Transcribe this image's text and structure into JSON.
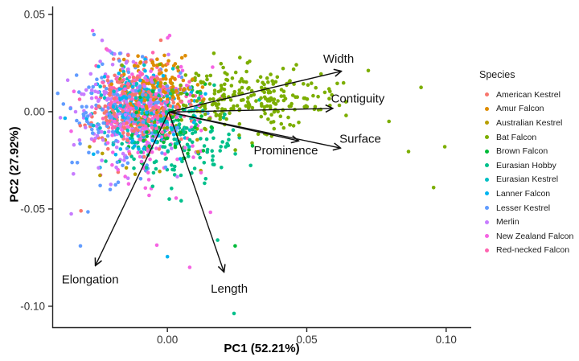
{
  "figure": {
    "type": "PCA biplot scatter",
    "background": "#ffffff"
  },
  "legend": {
    "title": "Species",
    "items": [
      {
        "label": "American Kestrel",
        "color": "#F8766D"
      },
      {
        "label": "Amur Falcon",
        "color": "#DE8C00"
      },
      {
        "label": "Australian Kestrel",
        "color": "#B79F00"
      },
      {
        "label": "Bat Falcon",
        "color": "#7CAE00"
      },
      {
        "label": "Brown Falcon",
        "color": "#00BA38"
      },
      {
        "label": "Eurasian Hobby",
        "color": "#00C08B"
      },
      {
        "label": "Eurasian Kestrel",
        "color": "#00BFC4"
      },
      {
        "label": "Lanner Falcon",
        "color": "#00B4F0"
      },
      {
        "label": "Lesser Kestrel",
        "color": "#619CFF"
      },
      {
        "label": "Merlin",
        "color": "#C77CFF"
      },
      {
        "label": "New Zealand Falcon",
        "color": "#F564E3"
      },
      {
        "label": "Red-necked Falcon",
        "color": "#FF64B0"
      }
    ]
  },
  "chart_data": {
    "type": "scatter",
    "title": "",
    "xlabel": "PC1 (52.21%)",
    "ylabel": "PC2 (27.92%)",
    "xlim": [
      -0.0413,
      0.109
    ],
    "ylim": [
      -0.1112,
      0.0541
    ],
    "x_ticks": [
      0.0,
      0.05,
      0.1
    ],
    "x_tick_labels": [
      "0.00",
      "0.05",
      "0.10"
    ],
    "y_ticks": [
      0.05,
      0.0,
      -0.05,
      -0.1
    ],
    "y_tick_labels": [
      "0.05",
      "0.00",
      "-0.05",
      "-0.10"
    ],
    "grid": false,
    "legend_position": "right",
    "axis_color": "#222222",
    "arrow_color": "#111111",
    "point_radius": 2.3,
    "seed": 42,
    "species_clusters": [
      {
        "name": "American Kestrel",
        "color": "#F8766D",
        "n": 200,
        "cx": -0.012,
        "cy": 0.005,
        "sx": 0.0085,
        "sy": 0.011
      },
      {
        "name": "Amur Falcon",
        "color": "#DE8C00",
        "n": 130,
        "cx": -0.004,
        "cy": 0.012,
        "sx": 0.0075,
        "sy": 0.0075
      },
      {
        "name": "Australian Kestrel",
        "color": "#B79F00",
        "n": 30,
        "cx": -0.01,
        "cy": -0.01,
        "sx": 0.013,
        "sy": 0.016
      },
      {
        "name": "Bat Falcon",
        "color": "#7CAE00",
        "n": 270,
        "cx": 0.026,
        "cy": 0.007,
        "sx": 0.017,
        "sy": 0.0085
      },
      {
        "name": "Brown Falcon",
        "color": "#00BA38",
        "n": 70,
        "cx": 0.0,
        "cy": -0.008,
        "sx": 0.009,
        "sy": 0.011
      },
      {
        "name": "Eurasian Hobby",
        "color": "#00C08B",
        "n": 150,
        "cx": 0.004,
        "cy": -0.014,
        "sx": 0.011,
        "sy": 0.013
      },
      {
        "name": "Eurasian Kestrel",
        "color": "#00BFC4",
        "n": 120,
        "cx": -0.008,
        "cy": 0.001,
        "sx": 0.008,
        "sy": 0.01
      },
      {
        "name": "Lanner Falcon",
        "color": "#00B4F0",
        "n": 120,
        "cx": -0.01,
        "cy": 0.0,
        "sx": 0.009,
        "sy": 0.012
      },
      {
        "name": "Lesser Kestrel",
        "color": "#619CFF",
        "n": 170,
        "cx": -0.015,
        "cy": -0.003,
        "sx": 0.01,
        "sy": 0.015
      },
      {
        "name": "Merlin",
        "color": "#C77CFF",
        "n": 170,
        "cx": -0.016,
        "cy": 0.001,
        "sx": 0.009,
        "sy": 0.015
      },
      {
        "name": "New Zealand Falcon",
        "color": "#F564E3",
        "n": 140,
        "cx": -0.006,
        "cy": -0.004,
        "sx": 0.01,
        "sy": 0.017
      },
      {
        "name": "Red-necked Falcon",
        "color": "#FF64B0",
        "n": 130,
        "cx": -0.011,
        "cy": 0.004,
        "sx": 0.008,
        "sy": 0.0095
      }
    ],
    "outlier_points": [
      {
        "species": "Bat Falcon",
        "x": 0.091,
        "y": 0.0125
      },
      {
        "species": "Bat Falcon",
        "x": 0.0795,
        "y": -0.005
      },
      {
        "species": "Bat Falcon",
        "x": 0.0865,
        "y": -0.0205
      },
      {
        "species": "Bat Falcon",
        "x": 0.0995,
        "y": -0.018
      },
      {
        "species": "Bat Falcon",
        "x": 0.0955,
        "y": -0.039
      },
      {
        "species": "Eurasian Hobby",
        "x": 0.0239,
        "y": -0.1037
      },
      {
        "species": "Eurasian Hobby",
        "x": 0.018,
        "y": -0.066
      },
      {
        "species": "Brown Falcon",
        "x": 0.0243,
        "y": -0.069
      },
      {
        "species": "Lanner Falcon",
        "x": 0.0,
        "y": -0.0745
      },
      {
        "species": "New Zealand Falcon",
        "x": -0.0038,
        "y": -0.0686
      },
      {
        "species": "New Zealand Falcon",
        "x": 0.008,
        "y": -0.08
      },
      {
        "species": "Merlin",
        "x": -0.0345,
        "y": -0.0525
      },
      {
        "species": "American Kestrel",
        "x": -0.031,
        "y": -0.051
      },
      {
        "species": "Lesser Kestrel",
        "x": -0.0285,
        "y": -0.0515
      },
      {
        "species": "Lesser Kestrel",
        "x": -0.0312,
        "y": -0.069
      }
    ],
    "loadings": {
      "origin": {
        "x": 0.0005,
        "y": -0.0002
      },
      "arrows": [
        {
          "name": "Width",
          "x": 0.0621,
          "y": 0.0207,
          "label_x": 0.0614,
          "label_y": 0.0273
        },
        {
          "name": "Contiguity",
          "x": 0.059,
          "y": 0.0017,
          "label_x": 0.0683,
          "label_y": 0.0068
        },
        {
          "name": "Surface",
          "x": 0.0618,
          "y": -0.0186,
          "label_x": 0.0692,
          "label_y": -0.0138
        },
        {
          "name": "Prominence",
          "x": 0.0468,
          "y": -0.0149,
          "label_x": 0.0425,
          "label_y": -0.0198
        },
        {
          "name": "Elongation",
          "x": -0.0257,
          "y": -0.0787,
          "label_x": -0.0277,
          "label_y": -0.0862
        },
        {
          "name": "Length",
          "x": 0.0202,
          "y": -0.082,
          "label_x": 0.0222,
          "label_y": -0.091
        }
      ]
    }
  }
}
